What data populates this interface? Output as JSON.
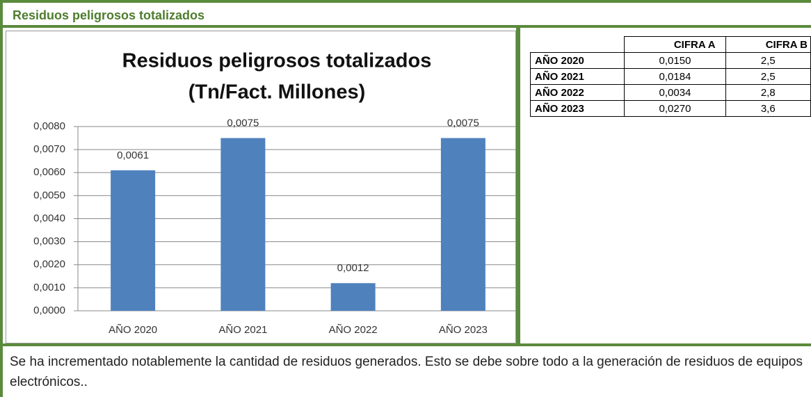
{
  "header": {
    "title": "Residuos peligrosos totalizados"
  },
  "chart_data": {
    "type": "bar",
    "title": [
      "Residuos peligrosos totalizados",
      "(Tn/Fact. Millones)"
    ],
    "categories": [
      "AÑO 2020",
      "AÑO 2021",
      "AÑO 2022",
      "AÑO 2023"
    ],
    "values": [
      0.0061,
      0.0075,
      0.0012,
      0.0075
    ],
    "value_labels": [
      "0,0061",
      "0,0075",
      "0,0012",
      "0,0075"
    ],
    "color": "#4f81bd",
    "ylim": [
      0,
      0.008
    ],
    "yticks": [
      {
        "value": 0,
        "label": "0,0000"
      },
      {
        "value": 0.001,
        "label": "0,0010"
      },
      {
        "value": 0.002,
        "label": "0,0020"
      },
      {
        "value": 0.003,
        "label": "0,0030"
      },
      {
        "value": 0.004,
        "label": "0,0040"
      },
      {
        "value": 0.005,
        "label": "0,0050"
      },
      {
        "value": 0.006,
        "label": "0,0060"
      },
      {
        "value": 0.007,
        "label": "0,0070"
      },
      {
        "value": 0.008,
        "label": "0,0080"
      }
    ],
    "grid": true
  },
  "table": {
    "columns": [
      "CIFRA A",
      "CIFRA B"
    ],
    "rows": [
      [
        "AÑO 2020",
        "0,0150",
        "2,5"
      ],
      [
        "AÑO 2021",
        "0,0184",
        "2,5"
      ],
      [
        "AÑO 2022",
        "0,0034",
        "2,8"
      ],
      [
        "AÑO 2023",
        "0,0270",
        "3,6"
      ]
    ]
  },
  "comment": "Se ha incrementado notablemente la cantidad de residuos generados. Esto se debe sobre todo a la generación de residuos de equipos electrónicos.."
}
